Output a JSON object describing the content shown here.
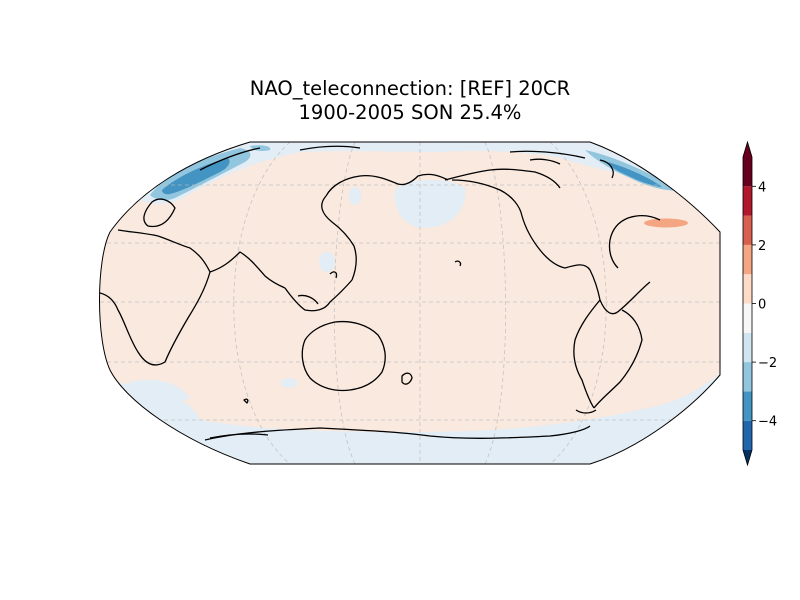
{
  "figure": {
    "title_line1": "NAO_teleconnection: [REF] 20CR",
    "title_line2": "1900-2005 SON 25.4%"
  },
  "map": {
    "projection": "Robinson",
    "central_longitude": 180,
    "gridlines": true,
    "coastlines": true,
    "background_color": "#f9e9df"
  },
  "colorbar": {
    "orientation": "vertical",
    "extend": "both",
    "levels": [
      -5,
      -4,
      -3,
      -2,
      -1,
      0,
      1,
      2,
      3,
      4,
      5
    ],
    "colors": [
      "#053061",
      "#2166ac",
      "#4393c3",
      "#92c5de",
      "#d1e5f0",
      "#f7f7f7",
      "#fddbc7",
      "#f4a582",
      "#d6604d",
      "#b2182b",
      "#67001f"
    ],
    "ticks": [
      4,
      2,
      0,
      -2,
      -4
    ],
    "tick_labels": [
      "4",
      "2",
      "0",
      "−2",
      "−4"
    ]
  }
}
